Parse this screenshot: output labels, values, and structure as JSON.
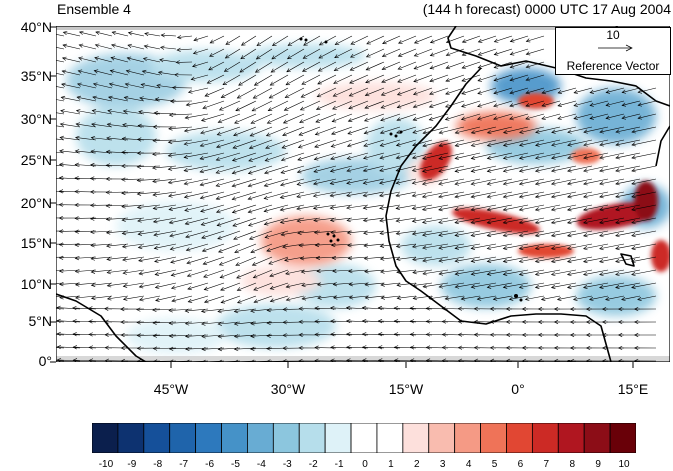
{
  "header": {
    "left_title": "Ensemble 4",
    "right_title": "(144 h forecast) 0000 UTC 17 Aug 2004"
  },
  "map": {
    "lon_range": [
      -58,
      20
    ],
    "lat_range": [
      0,
      40
    ],
    "y_ticks": [
      "0°",
      "5°N",
      "10°N",
      "15°N",
      "20°N",
      "25°N",
      "30°N",
      "35°N",
      "40°N"
    ],
    "x_ticks": [
      "45°W",
      "30°W",
      "15°W",
      "0°",
      "15°E"
    ]
  },
  "reference_vector": {
    "value": "10",
    "label": "Reference Vector"
  },
  "colorbar": {
    "labels": [
      "-10",
      "-9",
      "-8",
      "-7",
      "-6",
      "-5",
      "-4",
      "-3",
      "-2",
      "-1",
      "0",
      "1",
      "2",
      "3",
      "4",
      "5",
      "6",
      "7",
      "8",
      "9",
      "10"
    ],
    "colors": [
      "#0b1f4d",
      "#0d3270",
      "#15509a",
      "#1f64ab",
      "#2d79bd",
      "#4592c8",
      "#68acd3",
      "#8cc6de",
      "#b6deeb",
      "#def2f8",
      "#ffffff",
      "#ffffff",
      "#fde0dc",
      "#f9bcaf",
      "#f59a85",
      "#ef7358",
      "#e14733",
      "#cc2a25",
      "#b01620",
      "#8c0d17",
      "#690008"
    ]
  }
}
